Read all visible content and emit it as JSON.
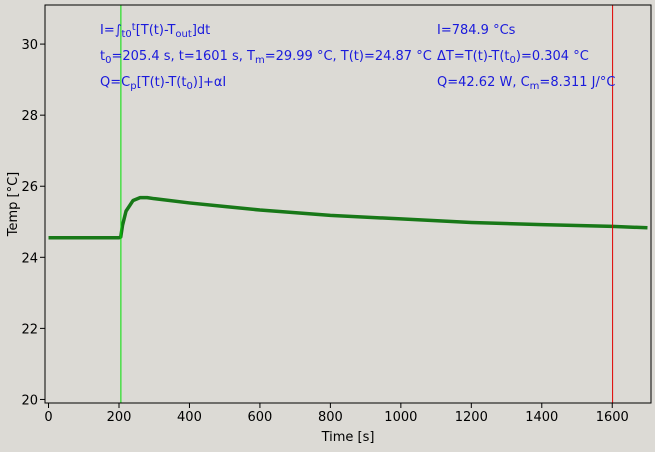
{
  "chart_data": {
    "type": "line",
    "x": [
      0,
      100,
      200,
      205,
      210,
      220,
      240,
      260,
      280,
      300,
      400,
      500,
      600,
      800,
      1000,
      1200,
      1400,
      1600,
      1700
    ],
    "values": [
      24.55,
      24.55,
      24.55,
      24.57,
      24.9,
      25.3,
      25.6,
      25.68,
      25.68,
      25.65,
      25.53,
      25.43,
      25.33,
      25.18,
      25.08,
      24.98,
      24.92,
      24.87,
      24.83
    ],
    "color": "#187818",
    "xlabel": "Time [s]",
    "ylabel": "Temp [°C]",
    "xlim": [
      -10,
      1710
    ],
    "ylim": [
      19.9,
      31.1
    ],
    "xticks": [
      0,
      200,
      400,
      600,
      800,
      1000,
      1200,
      1400,
      1600
    ],
    "yticks": [
      20,
      22,
      24,
      26,
      28,
      30
    ],
    "vlines": [
      {
        "x": 205.4,
        "color": "#00e000"
      },
      {
        "x": 1601,
        "color": "#e00000"
      }
    ],
    "annotations": [
      [
        "I=∫",
        {
          "sub": "t0"
        },
        {
          "sup": "t"
        },
        "[T(t)-T",
        {
          "sub": "out"
        },
        "]dt"
      ],
      [
        "t",
        {
          "sub": "0"
        },
        "=205.4 s,   t=1601 s,   T",
        {
          "sub": "m"
        },
        "=29.99 °C,  T(t)=24.87 °C"
      ],
      [
        "Q=C",
        {
          "sub": "p"
        },
        "[T(t)-T(t",
        {
          "sub": "0"
        },
        ")]+αI"
      ],
      [
        "I=784.9 °Cs"
      ],
      [
        "ΔT=T(t)-T(t",
        {
          "sub": "0"
        },
        ")=0.304 °C"
      ],
      [
        "Q=42.62 W,   C",
        {
          "sub": "m"
        },
        "=8.311 J/°C"
      ]
    ]
  }
}
